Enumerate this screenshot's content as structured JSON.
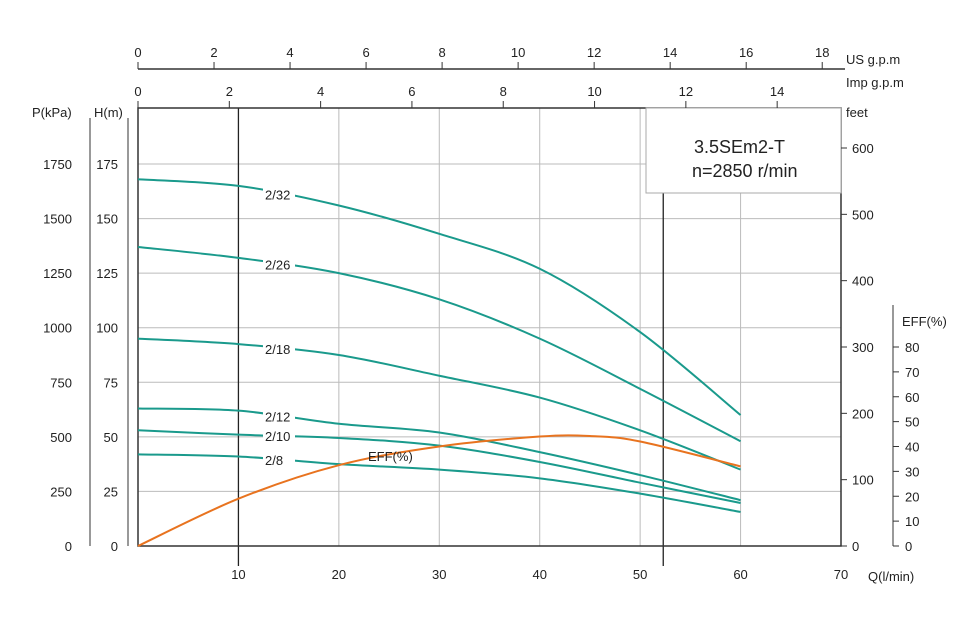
{
  "chart_data": {
    "type": "line",
    "title": "3.5SEm2-T",
    "subtitle": "n=2850 r/min",
    "xlabel": "Q(l/min)",
    "xlim": [
      0,
      70
    ],
    "x_ticks": [
      10,
      20,
      30,
      40,
      50,
      60,
      70
    ],
    "ylabel": "H(m)",
    "ylim": [
      0,
      175
    ],
    "y_ticks": [
      0,
      25,
      50,
      75,
      100,
      125,
      150,
      175
    ],
    "pressure_axis": {
      "label": "P(kPa)",
      "ticks": [
        0,
        250,
        500,
        750,
        1000,
        1250,
        1500,
        1750
      ]
    },
    "feet_axis": {
      "label": "feet",
      "ticks": [
        0,
        100,
        200,
        300,
        400,
        500,
        600
      ]
    },
    "eff_axis": {
      "label": "EFF(%)",
      "ticks": [
        0,
        10,
        20,
        30,
        40,
        50,
        60,
        70,
        80
      ]
    },
    "us_gpm_axis": {
      "label": "US  g.p.m",
      "ticks": [
        0,
        2,
        4,
        6,
        8,
        10,
        12,
        14,
        16,
        18
      ]
    },
    "imp_gpm_axis": {
      "label": "Imp  g.p.m",
      "ticks": [
        0,
        2,
        4,
        6,
        8,
        10,
        12,
        14
      ]
    },
    "grid": true,
    "x": [
      0,
      10,
      20,
      30,
      40,
      50,
      60
    ],
    "series": [
      {
        "name": "2/32",
        "values": [
          168,
          165,
          156,
          143,
          127,
          98,
          60
        ]
      },
      {
        "name": "2/26",
        "values": [
          137,
          132,
          125,
          113,
          95,
          72,
          48
        ]
      },
      {
        "name": "2/18",
        "values": [
          95,
          92.5,
          87.5,
          78,
          68,
          53,
          35
        ]
      },
      {
        "name": "2/12",
        "values": [
          63,
          62,
          56,
          52,
          43,
          32.5,
          21
        ]
      },
      {
        "name": "2/10",
        "values": [
          53,
          51,
          49.5,
          46,
          38.5,
          29,
          19.7
        ]
      },
      {
        "name": "2/8",
        "values": [
          42,
          41,
          37.5,
          35,
          31,
          24,
          15.6
        ]
      }
    ],
    "efficiency": {
      "name": "EFF(%)",
      "x": [
        0,
        10,
        20,
        30,
        40,
        45,
        50,
        60
      ],
      "values": [
        0,
        19,
        32.5,
        40,
        44,
        44.2,
        42,
        32
      ]
    },
    "colors": {
      "head": "#1a9a8c",
      "eff": "#e8731f",
      "grid": "#bbbbbb",
      "axis": "#333333"
    }
  }
}
